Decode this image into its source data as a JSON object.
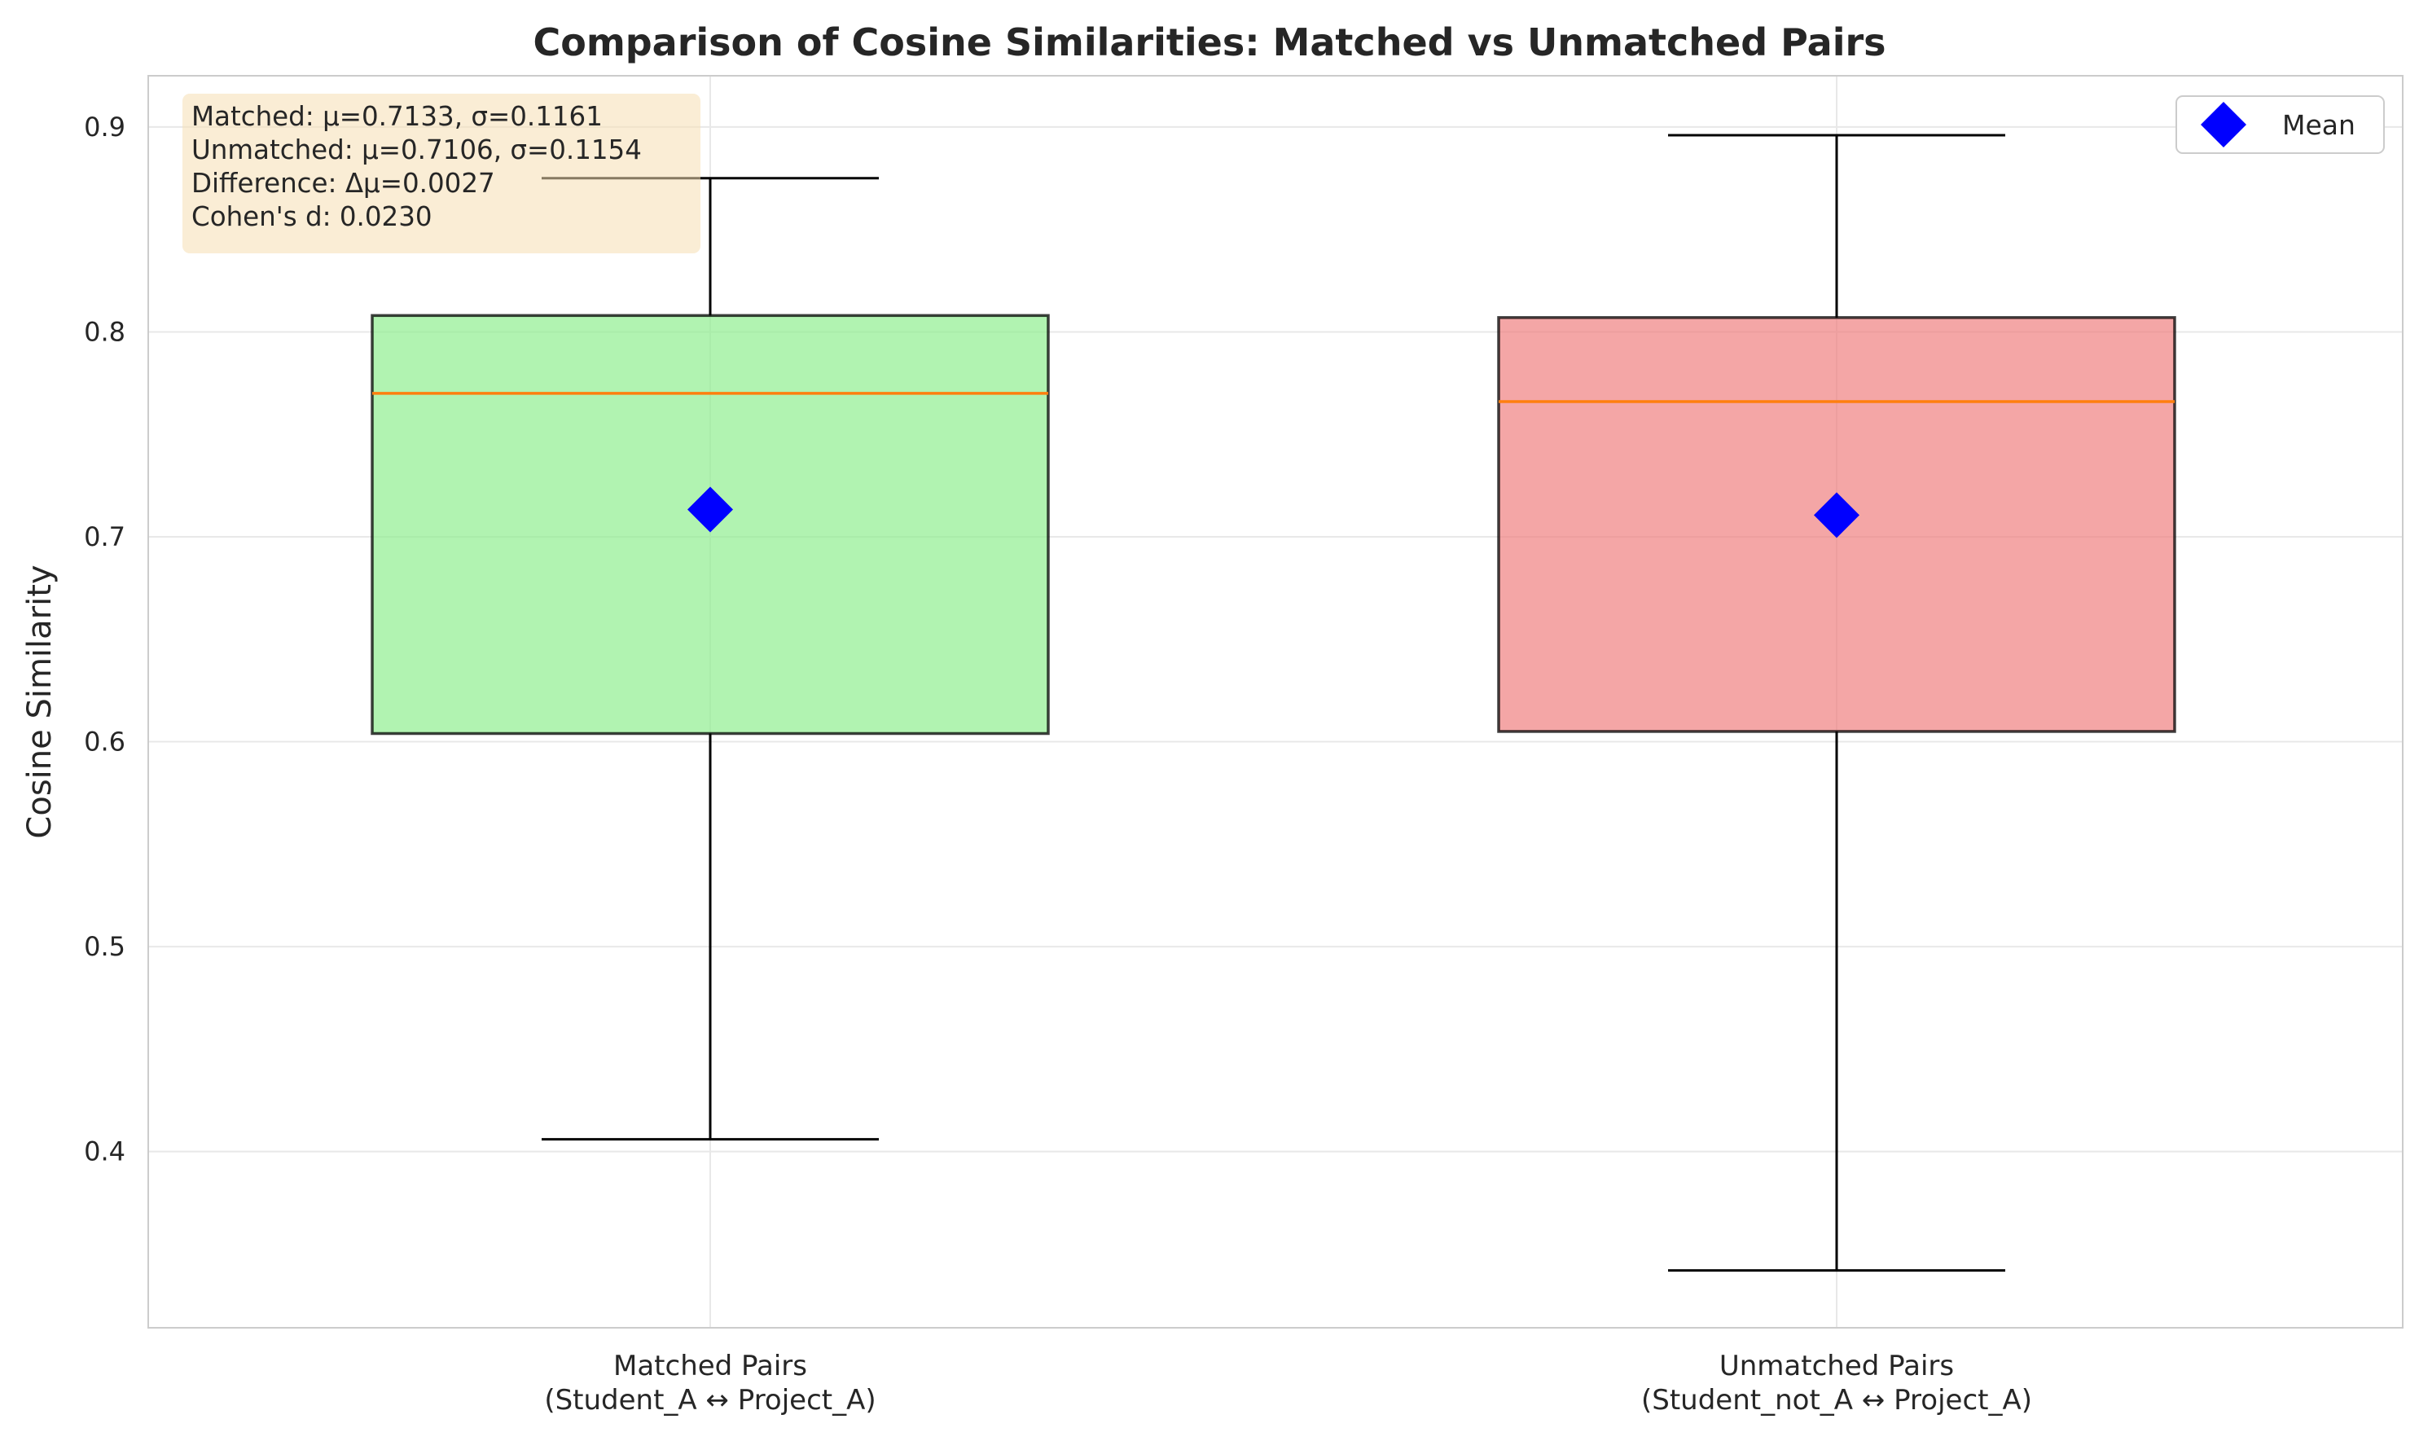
{
  "chart_data": {
    "type": "box",
    "title": "Comparison of Cosine Similarities: Matched vs Unmatched Pairs",
    "xlabel": "",
    "ylabel": "Cosine Similarity",
    "ylim": [
      0.314,
      0.925
    ],
    "yticks": [
      "0.4",
      "0.5",
      "0.6",
      "0.7",
      "0.8",
      "0.9"
    ],
    "grid": true,
    "legend": {
      "position": "top-right",
      "entries": [
        {
          "label": "Mean",
          "marker": "diamond",
          "color": "#0000ff"
        }
      ]
    },
    "categories": [
      "Matched Pairs\n(Student_A ↔ Project_A)",
      "Unmatched Pairs\n(Student_not_A ↔ Project_A)"
    ],
    "boxes": [
      {
        "whisker_low": 0.406,
        "q1": 0.604,
        "median": 0.77,
        "q3": 0.808,
        "whisker_high": 0.875,
        "mean": 0.7133,
        "color": "#90ee90"
      },
      {
        "whisker_low": 0.342,
        "q1": 0.605,
        "median": 0.766,
        "q3": 0.807,
        "whisker_high": 0.896,
        "mean": 0.7106,
        "color": "#f08080"
      }
    ],
    "median_color": "#ff7f0e",
    "annotation": {
      "lines": [
        "Matched: μ=0.7133, σ=0.1161",
        "Unmatched: μ=0.7106, σ=0.1154",
        "Difference: Δμ=0.0027",
        "Cohen's d: 0.0230"
      ]
    }
  }
}
